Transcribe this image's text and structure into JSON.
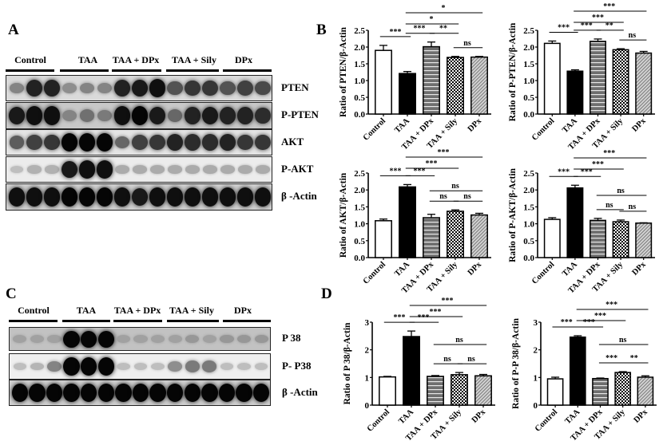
{
  "panels": {
    "A": "A",
    "B": "B",
    "C": "C",
    "D": "D"
  },
  "groups": [
    "Control",
    "TAA",
    "TAA + DPx",
    "TAA + Sily",
    "DPx"
  ],
  "blots_A": {
    "rows": [
      {
        "label": "PTEN",
        "bg": "#dadada",
        "intensity": [
          0.35,
          0.85,
          0.85,
          0.3,
          0.35,
          0.35,
          0.85,
          0.9,
          0.95,
          0.6,
          0.75,
          0.75,
          0.6,
          0.7,
          0.65
        ]
      },
      {
        "label": "P-PTEN",
        "bg": "#c8c8c8",
        "intensity": [
          0.9,
          0.95,
          0.95,
          0.35,
          0.45,
          0.4,
          0.95,
          1,
          0.9,
          0.5,
          0.85,
          0.9,
          0.85,
          0.85,
          0.8
        ]
      },
      {
        "label": "AKT",
        "bg": "#e4e4e4",
        "intensity": [
          0.55,
          0.7,
          0.75,
          1,
          1,
          1,
          0.5,
          0.7,
          0.75,
          0.85,
          0.8,
          0.8,
          0.85,
          0.75,
          0.75
        ]
      },
      {
        "label": "P-AKT",
        "bg": "#ececec",
        "intensity": [
          0.05,
          0.12,
          0.12,
          0.9,
          0.95,
          0.95,
          0.15,
          0.15,
          0.15,
          0.15,
          0.15,
          0.15,
          0.15,
          0.15,
          0.15
        ]
      },
      {
        "label": "β -Actin",
        "bg": "#d0d0d0",
        "intensity": [
          0.95,
          0.95,
          0.95,
          1,
          1,
          1,
          0.95,
          0.9,
          0.95,
          0.95,
          0.95,
          0.95,
          0.95,
          0.95,
          0.95
        ]
      }
    ]
  },
  "blots_C": {
    "rows": [
      {
        "label": "P 38",
        "bg": "#c2c2c2",
        "intensity": [
          0.2,
          0.2,
          0.2,
          1,
          1,
          1,
          0.2,
          0.2,
          0.2,
          0.2,
          0.25,
          0.2,
          0.25,
          0.25,
          0.25
        ]
      },
      {
        "label": "P- P38",
        "bg": "#efefef",
        "intensity": [
          0.05,
          0.1,
          0.35,
          1,
          1,
          1,
          0.05,
          0.05,
          0.05,
          0.3,
          0.4,
          0.4,
          0.05,
          0.05,
          0.05
        ]
      },
      {
        "label": "β -Actin",
        "bg": "#cfcfcf",
        "intensity": [
          1,
          1,
          1,
          1,
          1,
          1,
          1,
          1,
          1,
          1,
          1,
          1,
          1,
          1,
          1
        ]
      }
    ]
  },
  "chart_data": [
    {
      "id": "B1",
      "type": "bar",
      "title": "",
      "categories": [
        "Control",
        "TAA",
        "TAA + DPx",
        "TAA + Sily",
        "DPx"
      ],
      "values": [
        1.9,
        1.21,
        2.01,
        1.69,
        1.7
      ],
      "errors": [
        0.15,
        0.06,
        0.14,
        0.03,
        0.02
      ],
      "ylabel": "Ratio of PTEN/β-Actin",
      "xlabel": "",
      "ylim": [
        0,
        2.5
      ],
      "yticks": [
        "0.0",
        "0.5",
        "1.0",
        "1.5",
        "2.0",
        "2.5"
      ],
      "significance": [
        {
          "from": 0,
          "to": 1,
          "label": "***"
        },
        {
          "from": 1,
          "to": 2,
          "label": "***"
        },
        {
          "from": 2,
          "to": 3,
          "label": "**"
        },
        {
          "from": 3,
          "to": 4,
          "label": "ns"
        },
        {
          "from": 1,
          "to": 3,
          "label": "*"
        },
        {
          "from": 1,
          "to": 4,
          "label": "*"
        }
      ]
    },
    {
      "id": "B2",
      "type": "bar",
      "title": "",
      "categories": [
        "Control",
        "TAA",
        "TAA + DPx",
        "TAA + Sily",
        "DPx"
      ],
      "values": [
        2.11,
        1.28,
        2.17,
        1.92,
        1.82
      ],
      "errors": [
        0.07,
        0.04,
        0.07,
        0.03,
        0.05
      ],
      "ylabel": "Ratio of P-PTEN/β-Actin",
      "xlabel": "",
      "ylim": [
        0,
        2.5
      ],
      "yticks": [
        "0.0",
        "0.5",
        "1.0",
        "1.5",
        "2.0",
        "2.5"
      ],
      "significance": [
        {
          "from": 0,
          "to": 1,
          "label": "***"
        },
        {
          "from": 1,
          "to": 2,
          "label": "***"
        },
        {
          "from": 2,
          "to": 3,
          "label": "**"
        },
        {
          "from": 3,
          "to": 4,
          "label": "ns"
        },
        {
          "from": 1,
          "to": 3,
          "label": "***"
        },
        {
          "from": 1,
          "to": 4,
          "label": "***"
        }
      ]
    },
    {
      "id": "B3",
      "type": "bar",
      "title": "",
      "categories": [
        "Control",
        "TAA",
        "TAA + DPx",
        "TAA + Sily",
        "DPx"
      ],
      "values": [
        1.09,
        2.09,
        1.18,
        1.37,
        1.26
      ],
      "errors": [
        0.05,
        0.07,
        0.1,
        0.04,
        0.05
      ],
      "ylabel": "Ratio of AKT/β-Actin",
      "xlabel": "",
      "ylim": [
        0,
        2.5
      ],
      "yticks": [
        "0.0",
        "0.5",
        "1.0",
        "1.5",
        "2.0",
        "2.5"
      ],
      "significance": [
        {
          "from": 0,
          "to": 1,
          "label": "***"
        },
        {
          "from": 1,
          "to": 2,
          "label": "***"
        },
        {
          "from": 2,
          "to": 3,
          "label": "ns"
        },
        {
          "from": 3,
          "to": 4,
          "label": "ns"
        },
        {
          "from": 2,
          "to": 4,
          "label": "ns"
        },
        {
          "from": 1,
          "to": 3,
          "label": "***"
        },
        {
          "from": 1,
          "to": 4,
          "label": "***"
        }
      ]
    },
    {
      "id": "B4",
      "type": "bar",
      "title": "",
      "categories": [
        "Control",
        "TAA",
        "TAA + DPx",
        "TAA + Sily",
        "DPx"
      ],
      "values": [
        1.13,
        2.06,
        1.1,
        1.06,
        1.02
      ],
      "errors": [
        0.05,
        0.08,
        0.06,
        0.05,
        0.01
      ],
      "ylabel": "Ratio of P-AKT/β-Actin",
      "xlabel": "",
      "ylim": [
        0,
        2.5
      ],
      "yticks": [
        "0.0",
        "0.5",
        "1.0",
        "1.5",
        "2.0",
        "2.5"
      ],
      "significance": [
        {
          "from": 0,
          "to": 1,
          "label": "***"
        },
        {
          "from": 1,
          "to": 2,
          "label": "***"
        },
        {
          "from": 2,
          "to": 3,
          "label": "ns"
        },
        {
          "from": 3,
          "to": 4,
          "label": "ns"
        },
        {
          "from": 2,
          "to": 4,
          "label": "ns"
        },
        {
          "from": 1,
          "to": 3,
          "label": "***"
        },
        {
          "from": 1,
          "to": 4,
          "label": "***"
        }
      ]
    },
    {
      "id": "D1",
      "type": "bar",
      "title": "",
      "categories": [
        "Control",
        "TAA",
        "TAA + DPx",
        "TAA + Sily",
        "DPx"
      ],
      "values": [
        1.02,
        2.48,
        1.04,
        1.1,
        1.06
      ],
      "errors": [
        0.02,
        0.2,
        0.03,
        0.08,
        0.05
      ],
      "ylabel": "Ratio of P 38/β-Actin",
      "xlabel": "",
      "ylim": [
        0,
        3
      ],
      "yticks": [
        "0",
        "1",
        "2",
        "3"
      ],
      "significance": [
        {
          "from": 0,
          "to": 1,
          "label": "***"
        },
        {
          "from": 1,
          "to": 2,
          "label": "***"
        },
        {
          "from": 2,
          "to": 3,
          "label": "ns"
        },
        {
          "from": 3,
          "to": 4,
          "label": "ns"
        },
        {
          "from": 2,
          "to": 4,
          "label": "ns"
        },
        {
          "from": 1,
          "to": 3,
          "label": "***"
        },
        {
          "from": 1,
          "to": 4,
          "label": "***"
        }
      ]
    },
    {
      "id": "D2",
      "type": "bar",
      "title": "",
      "categories": [
        "Control",
        "TAA",
        "TAA + DPx",
        "TAA + Sily",
        "DPx"
      ],
      "values": [
        0.95,
        2.46,
        0.96,
        1.18,
        1.01
      ],
      "errors": [
        0.06,
        0.05,
        0.02,
        0.03,
        0.05
      ],
      "ylabel": "Ratio of P-P 38/β-Actin",
      "xlabel": "",
      "ylim": [
        0,
        3
      ],
      "yticks": [
        "0",
        "1",
        "2",
        "3"
      ],
      "significance": [
        {
          "from": 0,
          "to": 1,
          "label": "***"
        },
        {
          "from": 1,
          "to": 2,
          "label": "***"
        },
        {
          "from": 2,
          "to": 3,
          "label": "***"
        },
        {
          "from": 3,
          "to": 4,
          "label": "**"
        },
        {
          "from": 2,
          "to": 4,
          "label": "ns"
        },
        {
          "from": 1,
          "to": 3,
          "label": "***"
        },
        {
          "from": 1,
          "to": 4,
          "label": "***"
        }
      ]
    }
  ],
  "bar_fills": [
    "white",
    "black",
    "horizontal-stripes",
    "checker",
    "diagonal-hatch"
  ],
  "colors": {
    "axis": "#000000",
    "bar_dark": "#000000",
    "stripe_gray": "#6e6e6e",
    "hatch_gray": "#9a9a9a"
  }
}
